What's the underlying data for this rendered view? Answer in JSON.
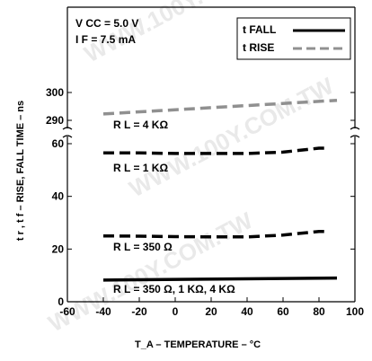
{
  "chart_data": {
    "type": "line",
    "title": "",
    "xlabel": "T_A – TEMPERATURE – °C",
    "ylabel": "t r , t f – RISE, FALL TIME – ns",
    "xlim": [
      -60,
      100
    ],
    "x_ticks": [
      "-60",
      "-40",
      "-20",
      "0",
      "20",
      "40",
      "60",
      "80",
      "100"
    ],
    "y_ticks": [
      "0",
      "20",
      "40",
      "60",
      "290",
      "300"
    ],
    "y_axis_break": {
      "lower_segment": [
        0,
        60
      ],
      "upper_segment": [
        290,
        300
      ]
    },
    "grid": false,
    "legend_position": "top-right",
    "conditions": {
      "vcc": "V CC = 5.0 V",
      "if": "I F = 7.5 mA"
    },
    "legend": [
      {
        "label": "t FALL",
        "style": "solid"
      },
      {
        "label": "t RISE",
        "style": "dashed"
      }
    ],
    "series": [
      {
        "name": "t RISE",
        "curve_label": "R L = 4 KΩ",
        "style": "dashed",
        "color": "#909090",
        "x": [
          -40,
          90
        ],
        "y": [
          292.3,
          297.2
        ]
      },
      {
        "name": "t RISE",
        "curve_label": "R L = 1 KΩ",
        "style": "dashed",
        "color": "#000000",
        "x": [
          -40,
          -20,
          0,
          20,
          40,
          60,
          80,
          85
        ],
        "y": [
          56.5,
          56.5,
          56.3,
          56.3,
          56.3,
          56.8,
          58.3,
          58.3
        ]
      },
      {
        "name": "t RISE",
        "curve_label": "R L = 350 Ω",
        "style": "dashed",
        "color": "#000000",
        "x": [
          -40,
          -20,
          0,
          20,
          40,
          60,
          80,
          85
        ],
        "y": [
          25.0,
          24.9,
          24.7,
          24.6,
          24.6,
          25.3,
          26.7,
          26.7
        ]
      },
      {
        "name": "t FALL",
        "curve_label": "R L = 350 Ω, 1 KΩ, 4 KΩ",
        "style": "solid",
        "color": "#000000",
        "x": [
          -40,
          90
        ],
        "y": [
          8.2,
          9.0
        ]
      }
    ]
  },
  "watermarks": [
    "WWW.100Y.COM.TW",
    "WWW.100Y.COM.TW",
    "WWW.100Y.COM.TW"
  ]
}
